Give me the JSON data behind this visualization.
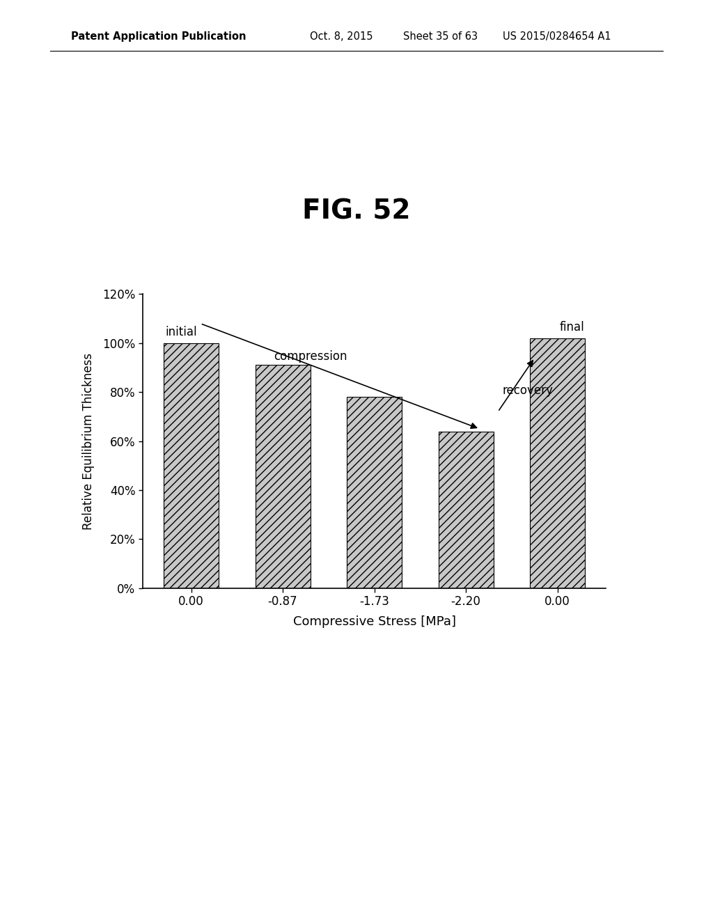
{
  "title": "FIG. 52",
  "categories": [
    "0.00",
    "-0.87",
    "-1.73",
    "-2.20",
    "0.00"
  ],
  "values": [
    100,
    91,
    78,
    64,
    102
  ],
  "xlabel": "Compressive Stress [MPa]",
  "ylabel": "Relative Equilibrium Thickness",
  "ylim": [
    0,
    120
  ],
  "yticks": [
    0,
    20,
    40,
    60,
    80,
    100,
    120
  ],
  "ytick_labels": [
    "0%",
    "20%",
    "40%",
    "60%",
    "80%",
    "100%",
    "120%"
  ],
  "bar_color": "#c8c8c8",
  "bar_edge_color": "#000000",
  "hatch": "///",
  "annotation_initial": "initial",
  "annotation_final": "final",
  "annotation_compression": "compression",
  "annotation_recovery": "recovery",
  "background_color": "#ffffff",
  "header_left": "Patent Application Publication",
  "header_date": "Oct. 8, 2015",
  "header_sheet": "Sheet 35 of 63",
  "header_patent": "US 2015/0284654 A1"
}
